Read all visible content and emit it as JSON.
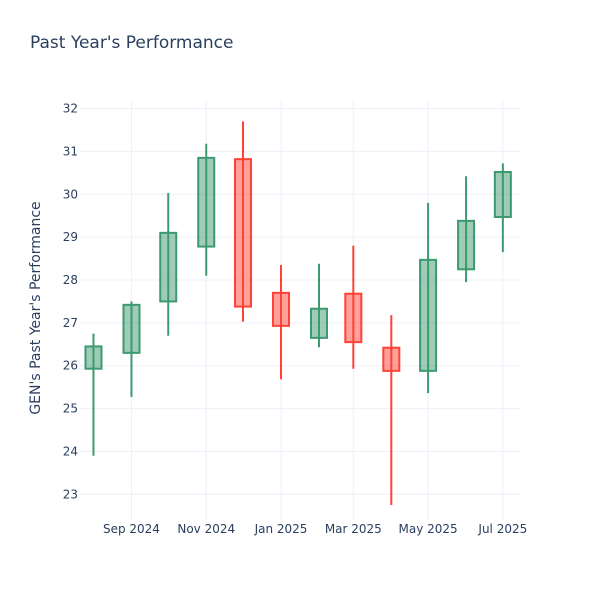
{
  "chart_data": {
    "type": "candlestick",
    "title": "Past Year's Performance",
    "xlabel": "",
    "ylabel": "GEN's Past Year's Performance",
    "ylim": [
      22.4,
      32.2
    ],
    "yticks": [
      23,
      24,
      25,
      26,
      27,
      28,
      29,
      30,
      31,
      32
    ],
    "xticks": [
      {
        "label": "Sep 2024",
        "date": "2024-09-01"
      },
      {
        "label": "Nov 2024",
        "date": "2024-11-01"
      },
      {
        "label": "Jan 2025",
        "date": "2025-01-01"
      },
      {
        "label": "Mar 2025",
        "date": "2025-03-01"
      },
      {
        "label": "May 2025",
        "date": "2025-05-01"
      },
      {
        "label": "Jul 2025",
        "date": "2025-07-01"
      }
    ],
    "xrange": [
      "2024-07-21",
      "2025-07-15"
    ],
    "increasing_color": "#3d9970",
    "decreasing_color": "#ff4136",
    "candles": [
      {
        "date": "2024-08-01",
        "open": 25.93,
        "high": 26.75,
        "low": 23.9,
        "close": 26.45
      },
      {
        "date": "2024-09-01",
        "open": 26.3,
        "high": 27.5,
        "low": 25.27,
        "close": 27.42
      },
      {
        "date": "2024-10-01",
        "open": 27.5,
        "high": 30.03,
        "low": 26.7,
        "close": 29.1
      },
      {
        "date": "2024-11-01",
        "open": 28.78,
        "high": 31.18,
        "low": 28.1,
        "close": 30.85
      },
      {
        "date": "2024-12-01",
        "open": 30.82,
        "high": 31.7,
        "low": 27.03,
        "close": 27.38
      },
      {
        "date": "2025-01-01",
        "open": 27.7,
        "high": 28.35,
        "low": 25.68,
        "close": 26.93
      },
      {
        "date": "2025-02-01",
        "open": 26.65,
        "high": 28.38,
        "low": 26.43,
        "close": 27.33
      },
      {
        "date": "2025-03-01",
        "open": 27.68,
        "high": 28.8,
        "low": 25.93,
        "close": 26.55
      },
      {
        "date": "2025-04-01",
        "open": 26.42,
        "high": 27.18,
        "low": 22.75,
        "close": 25.88
      },
      {
        "date": "2025-05-01",
        "open": 25.88,
        "high": 29.8,
        "low": 25.36,
        "close": 28.47
      },
      {
        "date": "2025-06-01",
        "open": 28.25,
        "high": 30.42,
        "low": 27.95,
        "close": 29.38
      },
      {
        "date": "2025-07-01",
        "open": 29.47,
        "high": 30.72,
        "low": 28.65,
        "close": 30.52
      }
    ]
  }
}
